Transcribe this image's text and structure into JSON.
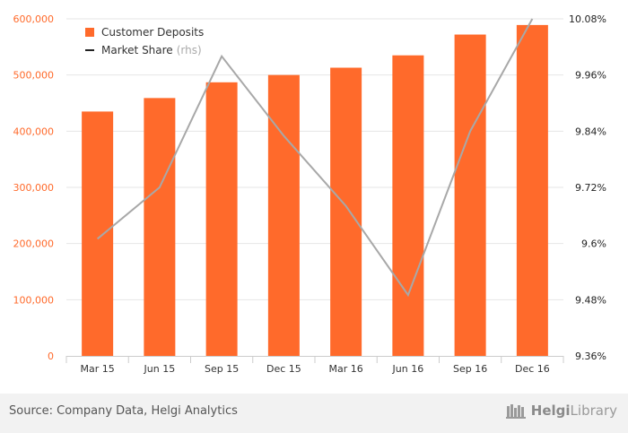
{
  "chart_data": {
    "type": "bar",
    "categories": [
      "Mar 15",
      "Jun 15",
      "Sep 15",
      "Dec 15",
      "Mar 16",
      "Jun 16",
      "Sep 16",
      "Dec 16"
    ],
    "series": [
      {
        "name": "Customer Deposits",
        "type": "bar",
        "axis": "left",
        "color": "#ff6a2b",
        "values": [
          435000,
          459000,
          487000,
          500000,
          513000,
          535000,
          572000,
          589000
        ]
      },
      {
        "name": "Market Share",
        "type": "line",
        "axis": "right",
        "color": "#a8a8a8",
        "values": [
          9.61,
          9.72,
          10.0,
          9.83,
          9.68,
          9.49,
          9.84,
          10.08
        ]
      }
    ],
    "left_axis": {
      "ylim": [
        0,
        600000
      ],
      "ticks": [
        0,
        100000,
        200000,
        300000,
        400000,
        500000,
        600000
      ],
      "tick_labels": [
        "0",
        "100,000",
        "200,000",
        "300,000",
        "400,000",
        "500,000",
        "600,000"
      ],
      "color": "#ff6a2b"
    },
    "right_axis": {
      "ylim": [
        9.36,
        10.08
      ],
      "ticks": [
        9.36,
        9.48,
        9.6,
        9.72,
        9.84,
        9.96,
        10.08
      ],
      "tick_labels": [
        "9.36%",
        "9.48%",
        "9.6%",
        "9.72%",
        "9.84%",
        "9.96%",
        "10.08%"
      ],
      "color": "#222222"
    },
    "grid": true,
    "legend_position": "top-left"
  },
  "legend": {
    "deposits_label": "Customer Deposits",
    "share_label": "Market Share",
    "share_suffix": "(rhs)"
  },
  "footer": {
    "source": "Source: Company Data, Helgi Analytics",
    "logo_text_bold": "Helgi",
    "logo_text_rest": "Library"
  }
}
